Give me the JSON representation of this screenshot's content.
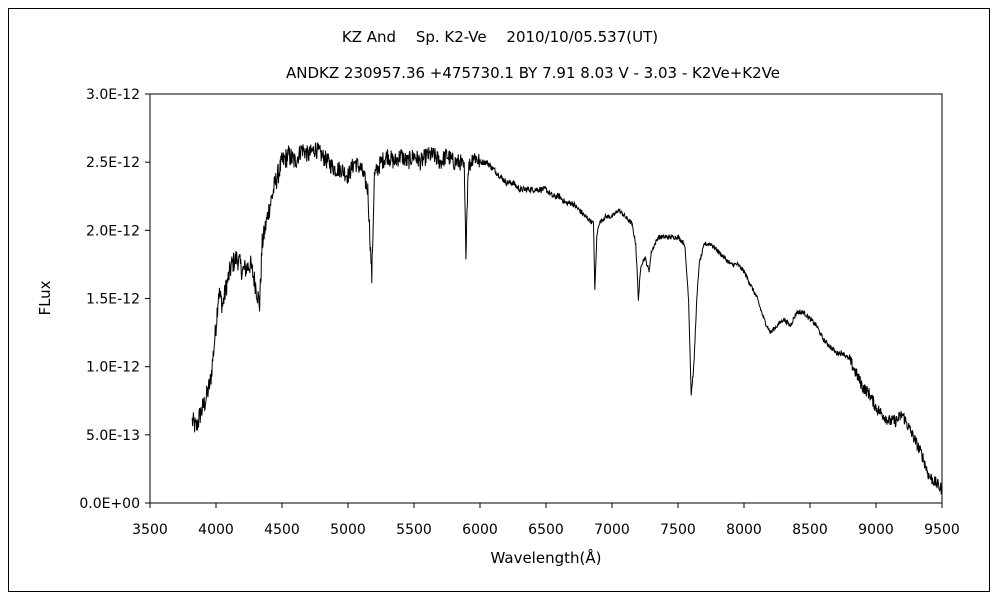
{
  "chart_data": {
    "type": "line",
    "title": "KZ And　 Sp. K2-Ve　 2010/10/05.537(UT)",
    "subtitle": "ANDKZ 230957.36 +475730.1 BY 7.91 8.03 V - 3.03 - K2Ve+K2Ve",
    "xlabel": "Wavelength(Å)",
    "ylabel": "FLux",
    "xlim": [
      3500,
      9500
    ],
    "ylim": [
      0,
      3e-12
    ],
    "x_ticks": [
      3500,
      4000,
      4500,
      5000,
      5500,
      6000,
      6500,
      7000,
      7500,
      8000,
      8500,
      9000,
      9500
    ],
    "x_tick_labels": [
      "3500",
      "4000",
      "4500",
      "5000",
      "5500",
      "6000",
      "6500",
      "7000",
      "7500",
      "8000",
      "8500",
      "9000",
      "9500"
    ],
    "y_ticks": [
      0,
      5e-13,
      1e-12,
      1.5e-12,
      2e-12,
      2.5e-12,
      3e-12
    ],
    "y_tick_labels": [
      "0.0E+00",
      "5.0E-13",
      "1.0E-12",
      "1.5E-12",
      "2.0E-12",
      "2.5E-12",
      "3.0E-12"
    ],
    "grid": false,
    "legend": "none",
    "series_color": "#000000",
    "x": [
      3820,
      3850,
      3880,
      3920,
      3960,
      4000,
      4020,
      4050,
      4080,
      4120,
      4160,
      4200,
      4260,
      4300,
      4330,
      4350,
      4400,
      4450,
      4500,
      4550,
      4600,
      4650,
      4700,
      4750,
      4800,
      4850,
      4900,
      4950,
      5000,
      5050,
      5100,
      5150,
      5180,
      5200,
      5250,
      5300,
      5350,
      5400,
      5450,
      5500,
      5550,
      5600,
      5650,
      5700,
      5750,
      5800,
      5850,
      5880,
      5893,
      5910,
      5950,
      6000,
      6050,
      6100,
      6150,
      6200,
      6250,
      6300,
      6350,
      6400,
      6450,
      6500,
      6550,
      6600,
      6650,
      6700,
      6750,
      6800,
      6860,
      6870,
      6885,
      6900,
      6950,
      7000,
      7050,
      7100,
      7150,
      7180,
      7200,
      7220,
      7250,
      7280,
      7300,
      7350,
      7400,
      7450,
      7500,
      7550,
      7580,
      7600,
      7620,
      7640,
      7660,
      7700,
      7750,
      7800,
      7850,
      7900,
      7950,
      8000,
      8050,
      8100,
      8150,
      8200,
      8250,
      8300,
      8350,
      8400,
      8450,
      8500,
      8550,
      8600,
      8650,
      8700,
      8750,
      8800,
      8850,
      8900,
      8950,
      9000,
      9050,
      9100,
      9150,
      9200,
      9250,
      9300,
      9350,
      9400,
      9450,
      9500
    ],
    "values": [
      6e-13,
      5.5e-13,
      6.5e-13,
      7.5e-13,
      9e-13,
      1.3e-12,
      1.55e-12,
      1.45e-12,
      1.6e-12,
      1.75e-12,
      1.8e-12,
      1.7e-12,
      1.75e-12,
      1.6e-12,
      1.45e-12,
      1.9e-12,
      2.15e-12,
      2.35e-12,
      2.5e-12,
      2.55e-12,
      2.5e-12,
      2.6e-12,
      2.55e-12,
      2.6e-12,
      2.55e-12,
      2.5e-12,
      2.45e-12,
      2.45e-12,
      2.4e-12,
      2.5e-12,
      2.45e-12,
      2.3e-12,
      1.65e-12,
      2.4e-12,
      2.5e-12,
      2.55e-12,
      2.5e-12,
      2.55e-12,
      2.5e-12,
      2.55e-12,
      2.5e-12,
      2.55e-12,
      2.55e-12,
      2.5e-12,
      2.55e-12,
      2.5e-12,
      2.5e-12,
      2.45e-12,
      1.85e-12,
      2.45e-12,
      2.55e-12,
      2.5e-12,
      2.5e-12,
      2.45e-12,
      2.4e-12,
      2.35e-12,
      2.35e-12,
      2.3e-12,
      2.3e-12,
      2.3e-12,
      2.3e-12,
      2.3e-12,
      2.25e-12,
      2.25e-12,
      2.2e-12,
      2.2e-12,
      2.15e-12,
      2.1e-12,
      2.05e-12,
      1.55e-12,
      1.95e-12,
      2.05e-12,
      2.1e-12,
      2.1e-12,
      2.15e-12,
      2.1e-12,
      2.05e-12,
      1.9e-12,
      1.5e-12,
      1.75e-12,
      1.8e-12,
      1.7e-12,
      1.85e-12,
      1.95e-12,
      1.95e-12,
      1.95e-12,
      1.95e-12,
      1.9e-12,
      1.5e-12,
      8e-13,
      1e-12,
      1.45e-12,
      1.75e-12,
      1.9e-12,
      1.9e-12,
      1.85e-12,
      1.8e-12,
      1.75e-12,
      1.75e-12,
      1.7e-12,
      1.6e-12,
      1.5e-12,
      1.35e-12,
      1.25e-12,
      1.3e-12,
      1.35e-12,
      1.3e-12,
      1.4e-12,
      1.4e-12,
      1.35e-12,
      1.3e-12,
      1.2e-12,
      1.15e-12,
      1.1e-12,
      1.1e-12,
      1.05e-12,
      9.5e-13,
      8.5e-13,
      8e-13,
      7e-13,
      6.5e-13,
      6e-13,
      6e-13,
      6.5e-13,
      5.5e-13,
      4.5e-13,
      3.5e-13,
      2e-13,
      1.5e-13,
      1e-13
    ]
  }
}
